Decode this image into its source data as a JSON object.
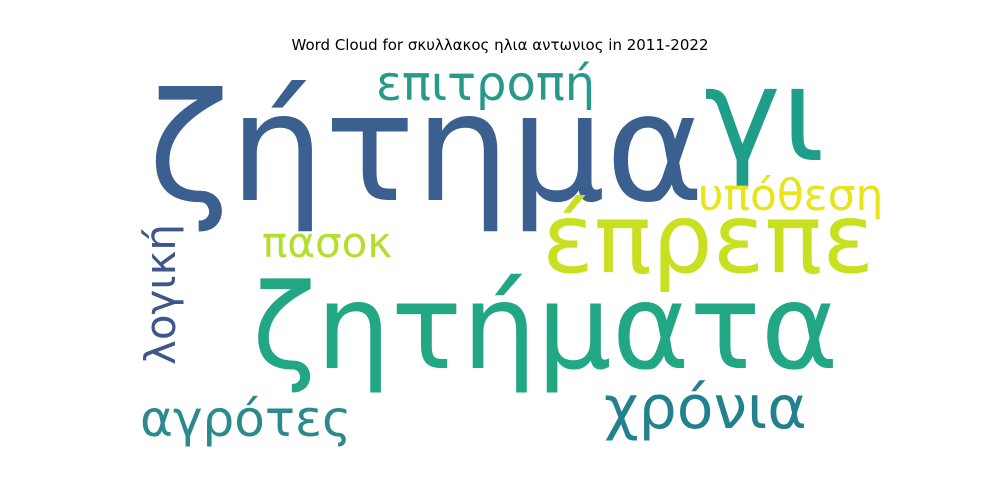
{
  "title": "Word Cloud for σκυλλακος ηλια αντωνιος in 2011-2022",
  "words": [
    {
      "text": "ζήτημα",
      "color": "#3b5f8f"
    },
    {
      "text": "γι",
      "color": "#1f9e89"
    },
    {
      "text": "επιτροπή",
      "color": "#26998a"
    },
    {
      "text": "υπόθεση",
      "color": "#e7e419"
    },
    {
      "text": "έπρεπε",
      "color": "#c8e020"
    },
    {
      "text": "πασοκ",
      "color": "#b4de2c"
    },
    {
      "text": "λογική",
      "color": "#40568a"
    },
    {
      "text": "ζητήματα",
      "color": "#22a785"
    },
    {
      "text": "χρόνια",
      "color": "#23818e"
    },
    {
      "text": "αγρότες",
      "color": "#2c8a8c"
    }
  ]
}
